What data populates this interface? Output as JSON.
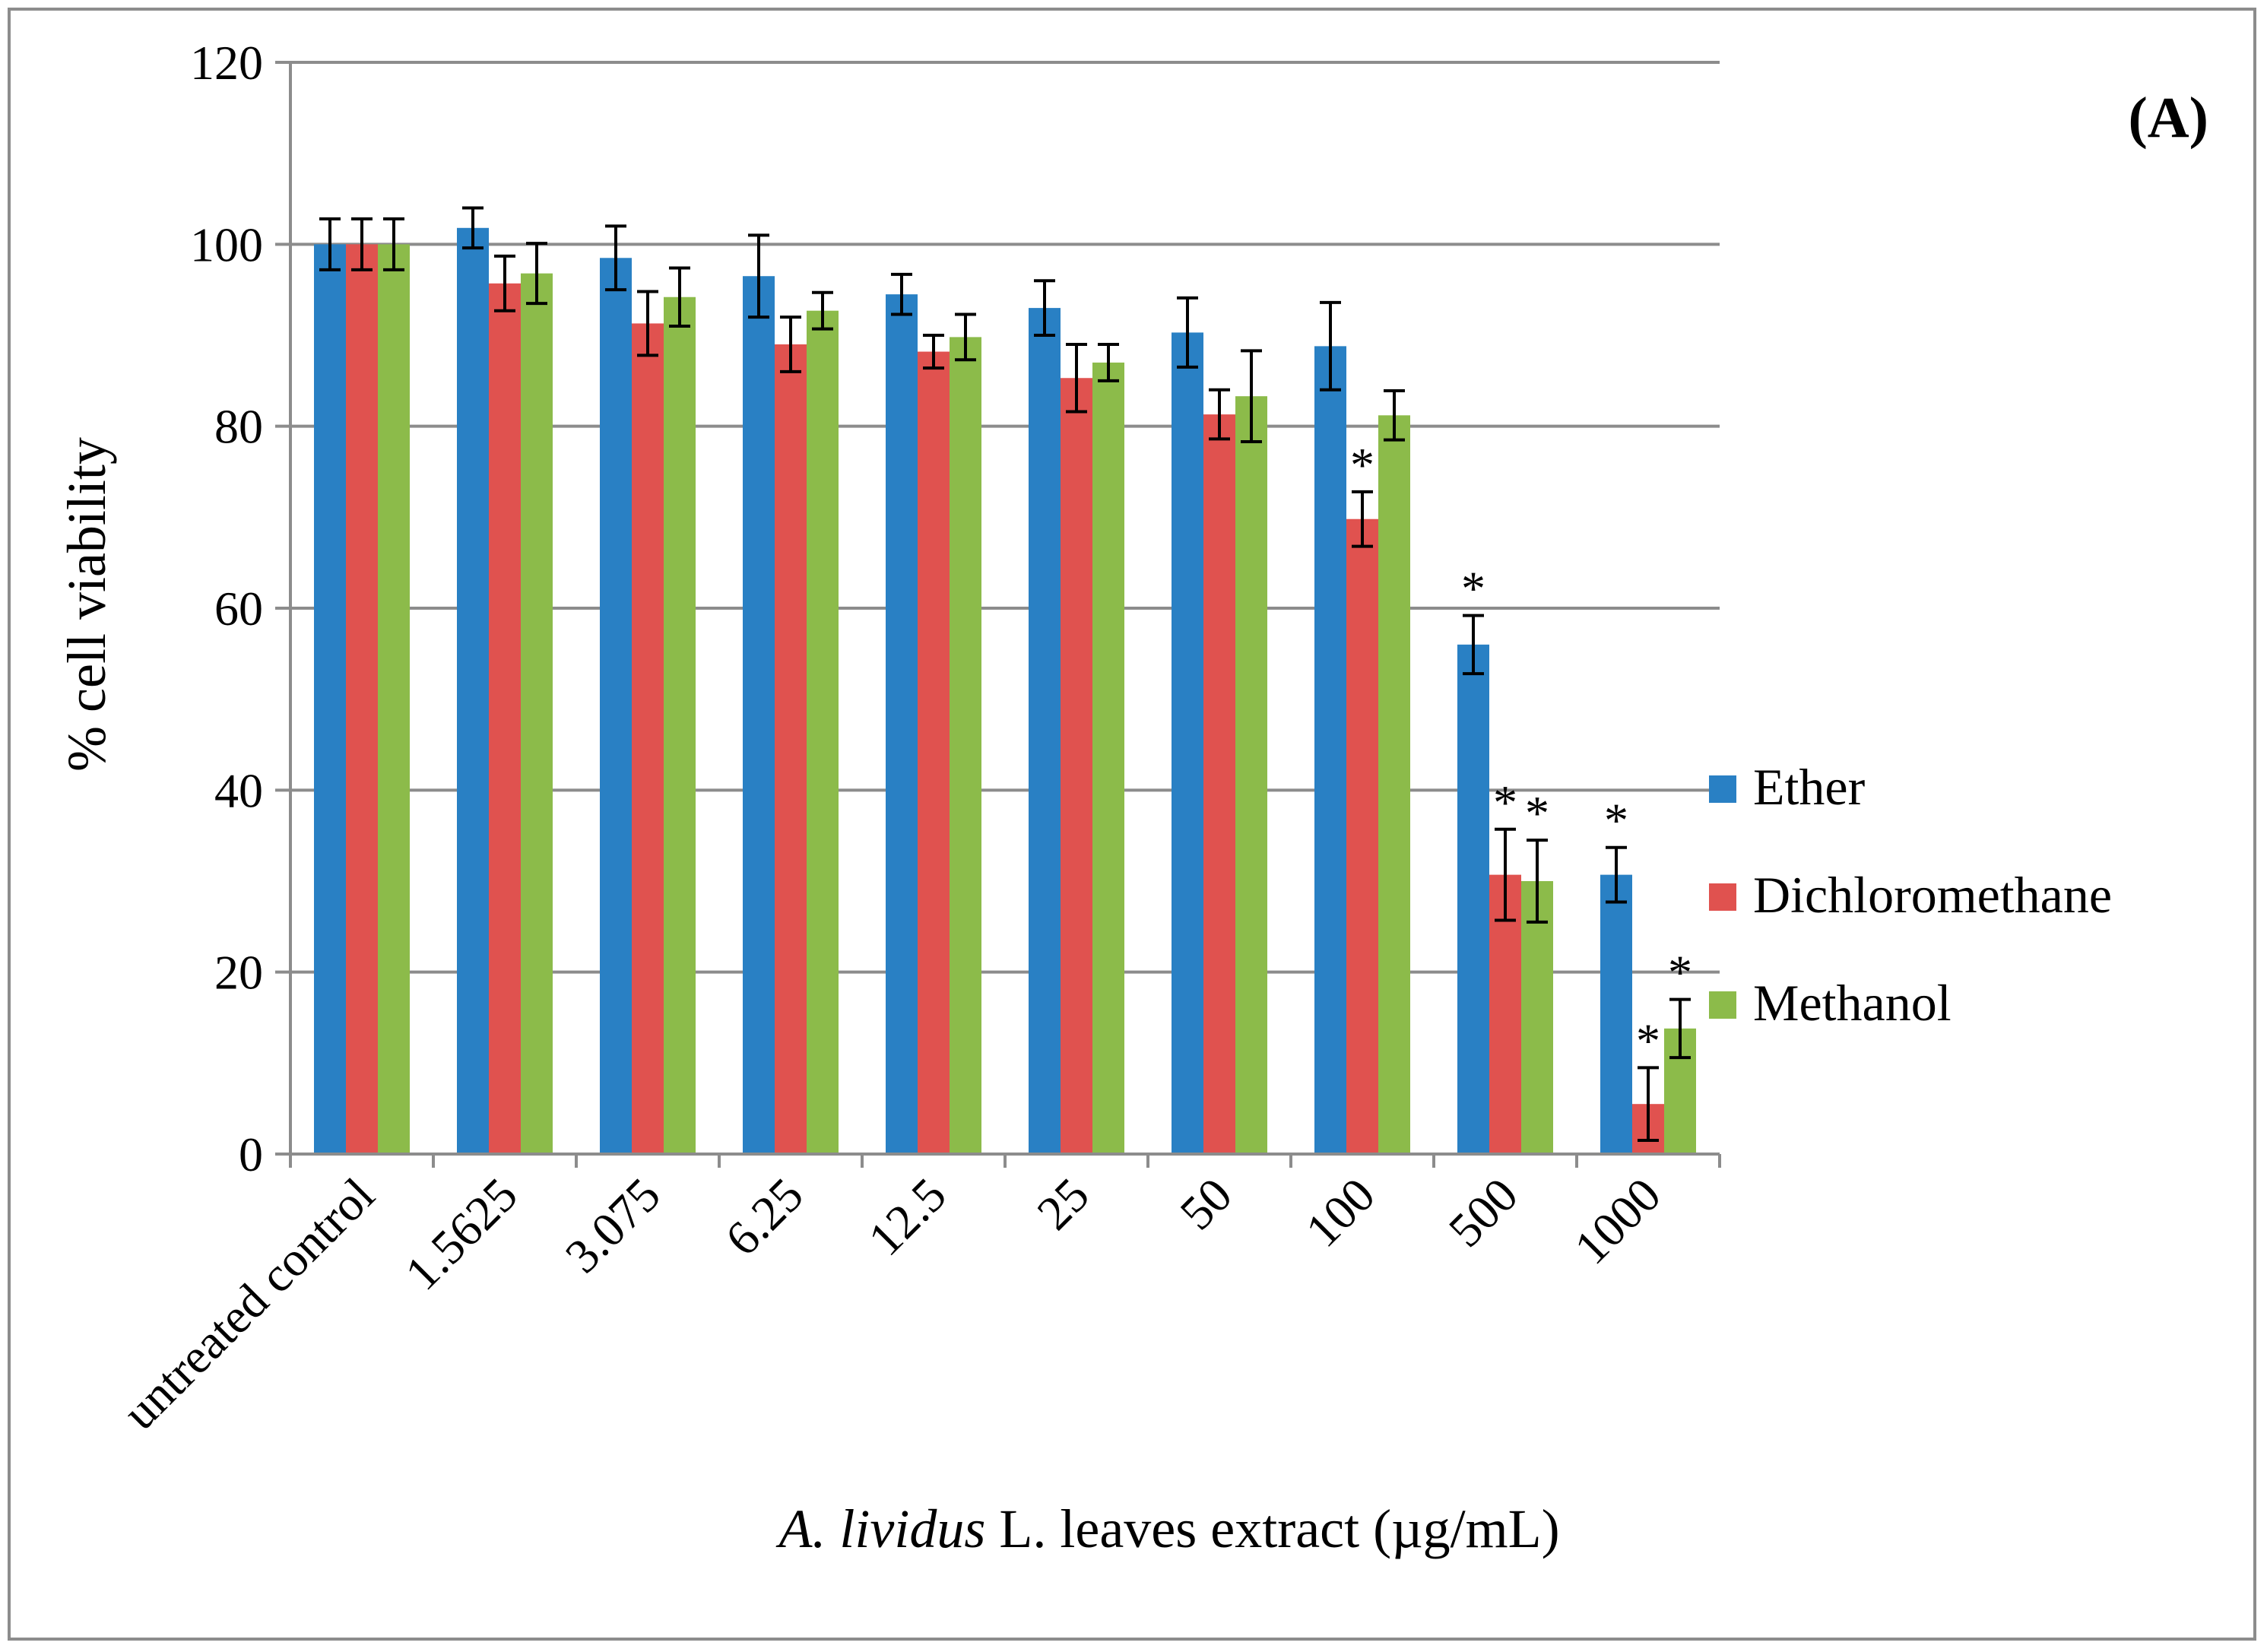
{
  "chart_data": {
    "type": "bar",
    "panel_label": "(A)",
    "ylabel": "% cell viability",
    "xlabel_italic": "A. lividus",
    "xlabel_rest": " L. leaves extract (µg/mL)",
    "ylim": [
      0,
      120
    ],
    "yticks": [
      0,
      20,
      40,
      60,
      80,
      100,
      120
    ],
    "ytick_labels": [
      "0",
      "20",
      "40",
      "60",
      "80",
      "100",
      "120"
    ],
    "grid": true,
    "legend_position": "right",
    "categories": [
      "untreated control",
      "1.5625",
      "3.075",
      "6.25",
      "12.5",
      "25",
      "50",
      "100",
      "500",
      "1000"
    ],
    "series": [
      {
        "name": "Ether",
        "color": "#2980c4",
        "values": [
          100,
          101.8,
          98.5,
          96.5,
          94.5,
          93,
          90.3,
          88.8,
          56,
          30.7
        ],
        "errors": [
          2.8,
          2.2,
          3.5,
          4.5,
          2.2,
          3,
          3.8,
          4.8,
          3.2,
          3
        ],
        "significant": [
          false,
          false,
          false,
          false,
          false,
          false,
          false,
          false,
          true,
          true
        ]
      },
      {
        "name": "Dichloromethane",
        "color": "#e0524f",
        "values": [
          100,
          95.7,
          91.3,
          89,
          88.2,
          85.3,
          81.3,
          69.8,
          30.7,
          5.5
        ],
        "errors": [
          2.8,
          3,
          3.5,
          3,
          1.8,
          3.7,
          2.7,
          3,
          5,
          4
        ],
        "significant": [
          false,
          false,
          false,
          false,
          false,
          false,
          false,
          true,
          true,
          true
        ]
      },
      {
        "name": "Methanol",
        "color": "#8cbb4a",
        "values": [
          100,
          96.8,
          94.2,
          92.7,
          89.8,
          87,
          83.3,
          81.2,
          30,
          13.8
        ],
        "errors": [
          2.8,
          3.3,
          3.2,
          2,
          2.5,
          2,
          5,
          2.7,
          4.5,
          3.2
        ],
        "significant": [
          false,
          false,
          false,
          false,
          false,
          false,
          false,
          false,
          true,
          true
        ]
      }
    ],
    "significance_marker": "*"
  }
}
